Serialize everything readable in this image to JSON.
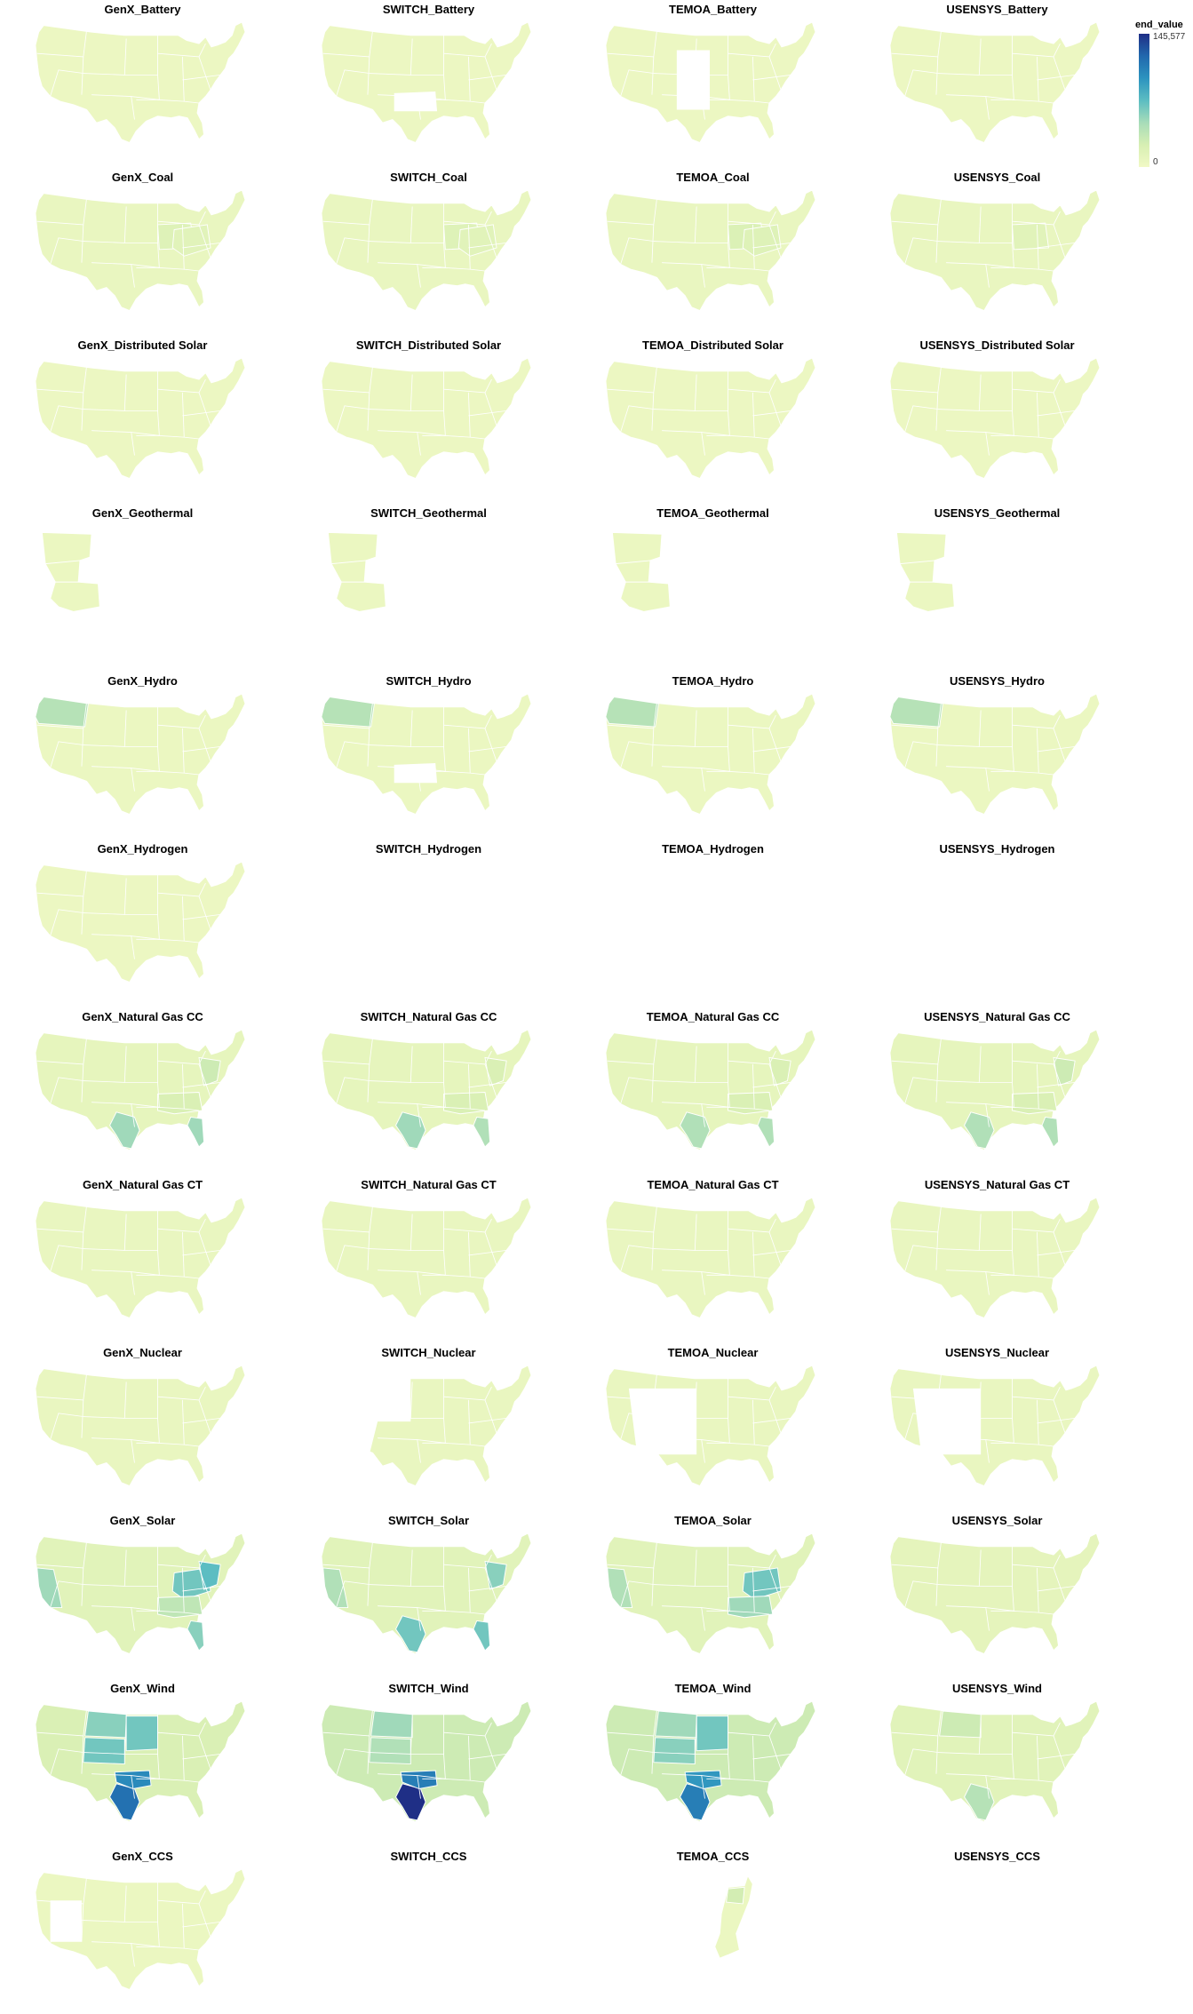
{
  "panels": [
    {
      "title": "GenX_Battery",
      "shape": "full",
      "level": 0.03,
      "highlights": []
    },
    {
      "title": "SWITCH_Battery",
      "shape": "no-texas",
      "level": 0.03,
      "highlights": []
    },
    {
      "title": "TEMOA_Battery",
      "shape": "no-central",
      "level": 0.03,
      "highlights": []
    },
    {
      "title": "USENSYS_Battery",
      "shape": "full",
      "level": 0.03,
      "highlights": []
    },
    {
      "title": "GenX_Coal",
      "shape": "full",
      "level": 0.05,
      "highlights": [
        {
          "region": "ohio-valley",
          "level": 0.12
        },
        {
          "region": "appalachia",
          "level": 0.1
        }
      ]
    },
    {
      "title": "SWITCH_Coal",
      "shape": "full",
      "level": 0.05,
      "highlights": [
        {
          "region": "ohio-valley",
          "level": 0.12
        },
        {
          "region": "appalachia",
          "level": 0.1
        }
      ]
    },
    {
      "title": "TEMOA_Coal",
      "shape": "full",
      "level": 0.05,
      "highlights": [
        {
          "region": "ohio-valley",
          "level": 0.14
        },
        {
          "region": "appalachia",
          "level": 0.12
        }
      ]
    },
    {
      "title": "USENSYS_Coal",
      "shape": "full",
      "level": 0.05,
      "highlights": [
        {
          "region": "ohio-valley",
          "level": 0.1
        }
      ]
    },
    {
      "title": "GenX_Distributed Solar",
      "shape": "full",
      "level": 0.03,
      "highlights": []
    },
    {
      "title": "SWITCH_Distributed Solar",
      "shape": "full",
      "level": 0.03,
      "highlights": []
    },
    {
      "title": "TEMOA_Distributed Solar",
      "shape": "full",
      "level": 0.03,
      "highlights": []
    },
    {
      "title": "USENSYS_Distributed Solar",
      "shape": "full",
      "level": 0.03,
      "highlights": []
    },
    {
      "title": "GenX_Geothermal",
      "shape": "west-only",
      "level": 0.04,
      "highlights": []
    },
    {
      "title": "SWITCH_Geothermal",
      "shape": "west-only",
      "level": 0.04,
      "highlights": []
    },
    {
      "title": "TEMOA_Geothermal",
      "shape": "west-only",
      "level": 0.04,
      "highlights": []
    },
    {
      "title": "USENSYS_Geothermal",
      "shape": "west-only",
      "level": 0.04,
      "highlights": []
    },
    {
      "title": "GenX_Hydro",
      "shape": "full",
      "level": 0.04,
      "highlights": [
        {
          "region": "northwest",
          "level": 0.28
        }
      ]
    },
    {
      "title": "SWITCH_Hydro",
      "shape": "no-texas",
      "level": 0.04,
      "highlights": [
        {
          "region": "northwest",
          "level": 0.28
        }
      ]
    },
    {
      "title": "TEMOA_Hydro",
      "shape": "full",
      "level": 0.04,
      "highlights": [
        {
          "region": "northwest",
          "level": 0.28
        }
      ]
    },
    {
      "title": "USENSYS_Hydro",
      "shape": "full",
      "level": 0.04,
      "highlights": [
        {
          "region": "northwest",
          "level": 0.28
        }
      ]
    },
    {
      "title": "GenX_Hydrogen",
      "shape": "full",
      "level": 0.03,
      "highlights": []
    },
    {
      "title": "SWITCH_Hydrogen",
      "shape": "none",
      "level": 0,
      "highlights": []
    },
    {
      "title": "TEMOA_Hydrogen",
      "shape": "none",
      "level": 0,
      "highlights": []
    },
    {
      "title": "USENSYS_Hydrogen",
      "shape": "none",
      "level": 0,
      "highlights": []
    },
    {
      "title": "GenX_Natural Gas CC",
      "shape": "full",
      "level": 0.07,
      "highlights": [
        {
          "region": "texas-south",
          "level": 0.35
        },
        {
          "region": "florida",
          "level": 0.35
        },
        {
          "region": "southeast",
          "level": 0.15
        },
        {
          "region": "mid-atlantic",
          "level": 0.2
        }
      ]
    },
    {
      "title": "SWITCH_Natural Gas CC",
      "shape": "full",
      "level": 0.07,
      "highlights": [
        {
          "region": "texas-south",
          "level": 0.35
        },
        {
          "region": "florida",
          "level": 0.3
        },
        {
          "region": "southeast",
          "level": 0.15
        },
        {
          "region": "mid-atlantic",
          "level": 0.15
        }
      ]
    },
    {
      "title": "TEMOA_Natural Gas CC",
      "shape": "full",
      "level": 0.07,
      "highlights": [
        {
          "region": "texas-south",
          "level": 0.3
        },
        {
          "region": "florida",
          "level": 0.3
        },
        {
          "region": "southeast",
          "level": 0.15
        },
        {
          "region": "mid-atlantic",
          "level": 0.15
        }
      ]
    },
    {
      "title": "USENSYS_Natural Gas CC",
      "shape": "full",
      "level": 0.07,
      "highlights": [
        {
          "region": "texas-south",
          "level": 0.3
        },
        {
          "region": "florida",
          "level": 0.3
        },
        {
          "region": "southeast",
          "level": 0.15
        },
        {
          "region": "mid-atlantic",
          "level": 0.2
        }
      ]
    },
    {
      "title": "GenX_Natural Gas CT",
      "shape": "full",
      "level": 0.05,
      "highlights": []
    },
    {
      "title": "SWITCH_Natural Gas CT",
      "shape": "full",
      "level": 0.05,
      "highlights": []
    },
    {
      "title": "TEMOA_Natural Gas CT",
      "shape": "full",
      "level": 0.05,
      "highlights": []
    },
    {
      "title": "USENSYS_Natural Gas CT",
      "shape": "full",
      "level": 0.05,
      "highlights": []
    },
    {
      "title": "GenX_Nuclear",
      "shape": "full",
      "level": 0.05,
      "highlights": []
    },
    {
      "title": "SWITCH_Nuclear",
      "shape": "no-west-plains",
      "level": 0.05,
      "highlights": []
    },
    {
      "title": "TEMOA_Nuclear",
      "shape": "no-west-central",
      "level": 0.05,
      "highlights": []
    },
    {
      "title": "USENSYS_Nuclear",
      "shape": "no-west-central",
      "level": 0.05,
      "highlights": []
    },
    {
      "title": "GenX_Solar",
      "shape": "full",
      "level": 0.1,
      "highlights": [
        {
          "region": "appalachia",
          "level": 0.45
        },
        {
          "region": "mid-atlantic",
          "level": 0.5
        },
        {
          "region": "florida",
          "level": 0.4
        },
        {
          "region": "california",
          "level": 0.35
        },
        {
          "region": "southeast",
          "level": 0.25
        }
      ]
    },
    {
      "title": "SWITCH_Solar",
      "shape": "full",
      "level": 0.1,
      "highlights": [
        {
          "region": "texas-south",
          "level": 0.45
        },
        {
          "region": "florida",
          "level": 0.45
        },
        {
          "region": "mid-atlantic",
          "level": 0.4
        },
        {
          "region": "california",
          "level": 0.3
        }
      ]
    },
    {
      "title": "TEMOA_Solar",
      "shape": "full",
      "level": 0.1,
      "highlights": [
        {
          "region": "appalachia",
          "level": 0.45
        },
        {
          "region": "southeast",
          "level": 0.35
        },
        {
          "region": "california",
          "level": 0.3
        }
      ]
    },
    {
      "title": "USENSYS_Solar",
      "shape": "full",
      "level": 0.08,
      "highlights": []
    },
    {
      "title": "GenX_Wind",
      "shape": "full",
      "level": 0.15,
      "highlights": [
        {
          "region": "texas-south",
          "level": 0.8
        },
        {
          "region": "oklahoma",
          "level": 0.7
        },
        {
          "region": "plains-north",
          "level": 0.4
        },
        {
          "region": "iowa",
          "level": 0.45
        },
        {
          "region": "colorado",
          "level": 0.45
        }
      ]
    },
    {
      "title": "SWITCH_Wind",
      "shape": "full",
      "level": 0.2,
      "highlights": [
        {
          "region": "texas-south",
          "level": 1.0
        },
        {
          "region": "oklahoma",
          "level": 0.75
        },
        {
          "region": "plains-north",
          "level": 0.35
        },
        {
          "region": "colorado",
          "level": 0.3
        }
      ]
    },
    {
      "title": "TEMOA_Wind",
      "shape": "full",
      "level": 0.2,
      "highlights": [
        {
          "region": "texas-south",
          "level": 0.75
        },
        {
          "region": "oklahoma",
          "level": 0.65
        },
        {
          "region": "iowa",
          "level": 0.45
        },
        {
          "region": "colorado",
          "level": 0.4
        },
        {
          "region": "plains-north",
          "level": 0.35
        }
      ]
    },
    {
      "title": "USENSYS_Wind",
      "shape": "full",
      "level": 0.1,
      "highlights": [
        {
          "region": "texas-south",
          "level": 0.28
        },
        {
          "region": "plains-north",
          "level": 0.2
        }
      ]
    },
    {
      "title": "GenX_CCS",
      "shape": "no-mountain",
      "level": 0.04,
      "highlights": []
    },
    {
      "title": "SWITCH_CCS",
      "shape": "none",
      "level": 0,
      "highlights": []
    },
    {
      "title": "TEMOA_CCS",
      "shape": "east-coast",
      "level": 0.04,
      "highlights": [
        {
          "region": "mid-atlantic",
          "level": 0.15
        }
      ]
    },
    {
      "title": "USENSYS_CCS",
      "shape": "none",
      "level": 0,
      "highlights": []
    }
  ],
  "legend": {
    "title": "end_value",
    "max_label": "145,577",
    "min_label": "0",
    "colors": [
      "#f1f9c5",
      "#d7efb3",
      "#a7dcb9",
      "#5cbdc2",
      "#2c93bf",
      "#2168ad",
      "#1f2f86"
    ]
  }
}
